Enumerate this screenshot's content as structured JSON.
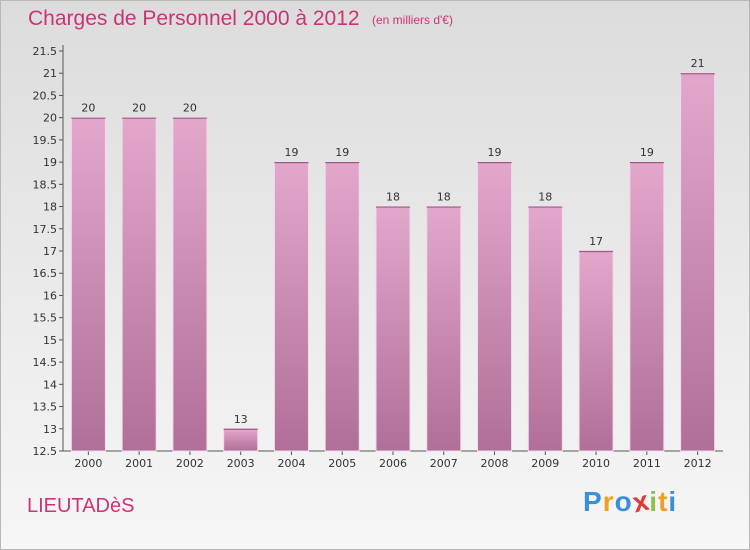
{
  "header": {
    "title": "Charges de Personnel 2000 à 2012",
    "subtitle": "(en milliers d'€)"
  },
  "footer": {
    "commune": "LIEUTADèS",
    "logo_letters": [
      "P",
      "r",
      "o",
      "x",
      "i",
      "t",
      "i"
    ],
    "logo_colors": [
      "#3b8fd8",
      "#f0a020",
      "#3b8fd8",
      "#e03a3a",
      "#8bc34a",
      "#f0a020",
      "#3b8fd8"
    ]
  },
  "chart_data": {
    "type": "bar",
    "title": "Charges de Personnel 2000 à 2012",
    "subtitle": "(en milliers d'€)",
    "xlabel": "",
    "ylabel": "",
    "categories": [
      "2000",
      "2001",
      "2002",
      "2003",
      "2004",
      "2005",
      "2006",
      "2007",
      "2008",
      "2009",
      "2010",
      "2011",
      "2012"
    ],
    "values": [
      20,
      20,
      20,
      13,
      19,
      19,
      18,
      18,
      19,
      18,
      17,
      19,
      21
    ],
    "data_labels": [
      "20",
      "20",
      "20",
      "13",
      "19",
      "19",
      "18",
      "18",
      "19",
      "18",
      "17",
      "19",
      "21"
    ],
    "ylim": [
      12.5,
      21.5
    ],
    "yticks": [
      "12.5",
      "13",
      "13.5",
      "14",
      "14.5",
      "15",
      "15.5",
      "16",
      "16.5",
      "17",
      "17.5",
      "18",
      "18.5",
      "19",
      "19.5",
      "20",
      "20.5",
      "21",
      "21.5"
    ],
    "grid": false,
    "bar_color_top": "#e3a7cc",
    "bar_color_bottom": "#b06f98",
    "label_color": "#333333"
  }
}
